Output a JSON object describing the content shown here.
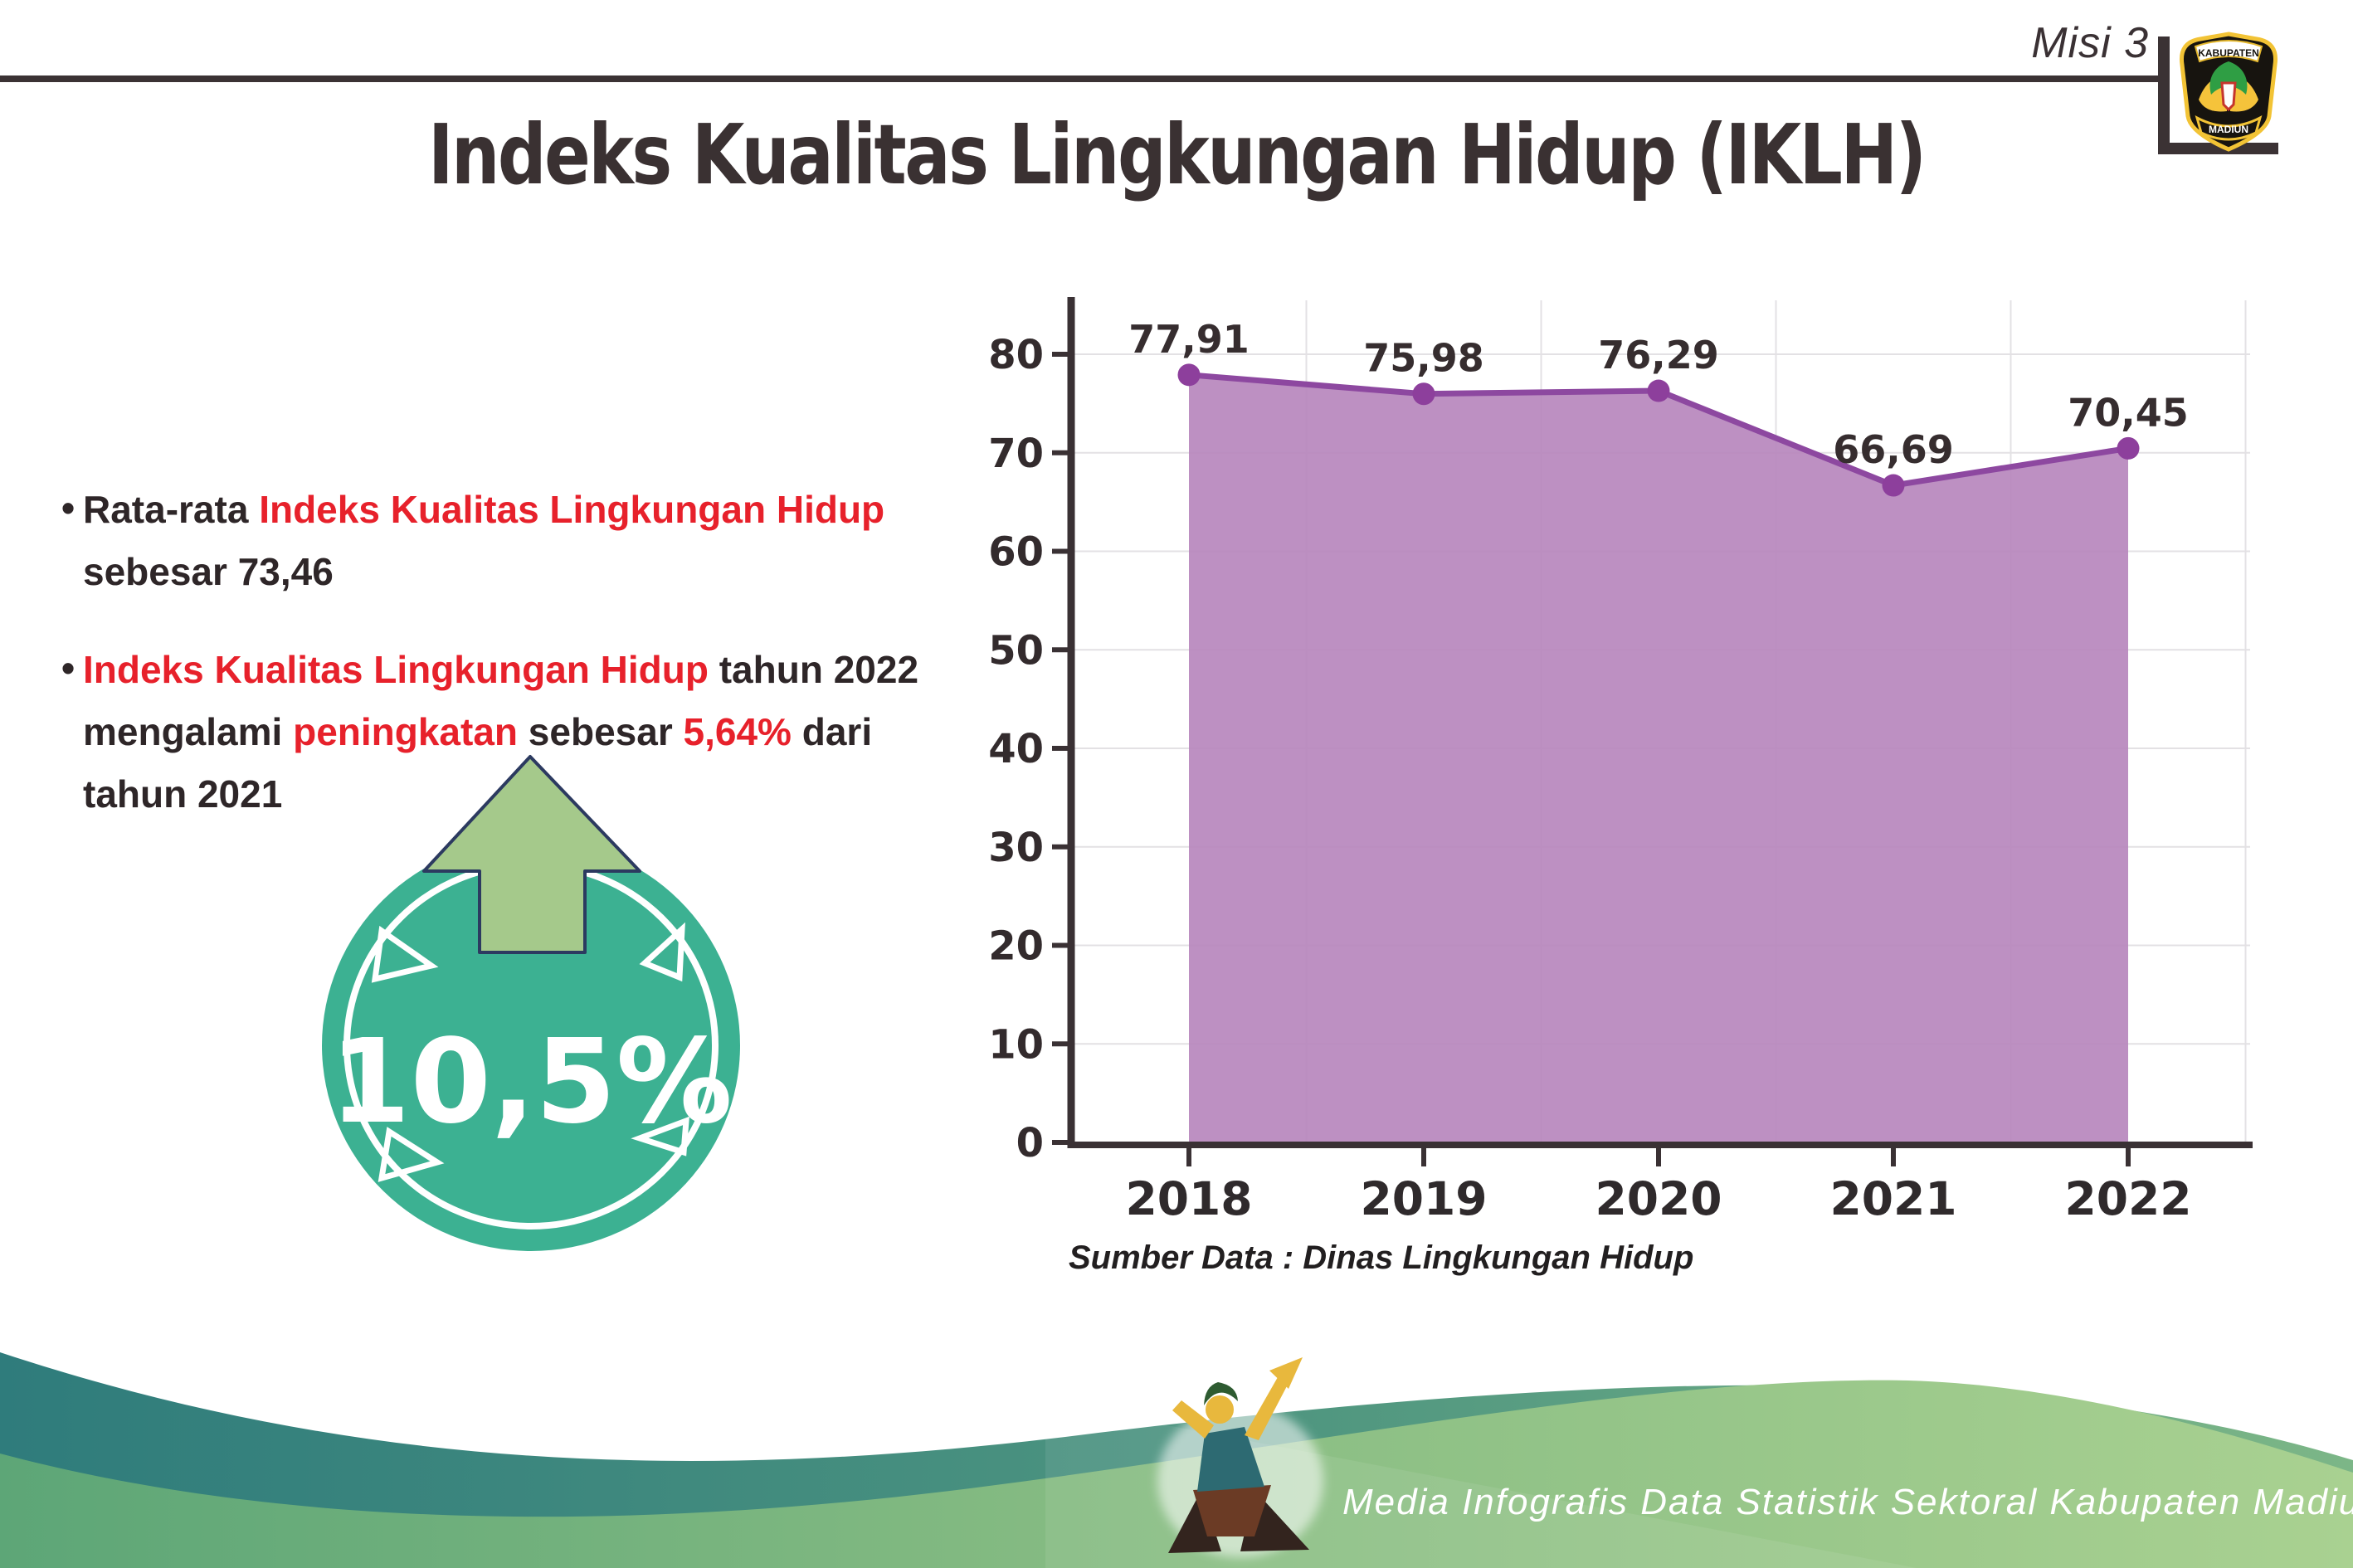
{
  "header": {
    "misi_label": "Misi 3",
    "logo": {
      "top_text": "KABUPATEN",
      "bottom_text": "MADIUN"
    }
  },
  "title": "Indeks Kualitas Lingkungan Hidup (IKLH)",
  "bullets": {
    "b1": {
      "bullet": "•",
      "pre": "Rata-rata ",
      "highlight": "Indeks Kualitas Lingkungan Hidup",
      "line2": "sebesar 73,46"
    },
    "b2": {
      "bullet": "•",
      "hl1": "Indeks Kualitas Lingkungan Hidup",
      "mid1": " tahun 2022",
      "l2a": "mengalami ",
      "hl2": "peningkatan",
      "l2b": " sebesar ",
      "hl3": "5,64%",
      "l2c": " dari",
      "line3": "tahun 2021"
    }
  },
  "badge": {
    "value": "10,5%"
  },
  "chart_data": {
    "type": "area",
    "title": "",
    "categories": [
      "2018",
      "2019",
      "2020",
      "2021",
      "2022"
    ],
    "values": [
      77.91,
      75.98,
      76.29,
      66.69,
      70.45
    ],
    "value_labels": [
      "77,91",
      "75,98",
      "76,29",
      "66,69",
      "70,45"
    ],
    "yticks": [
      0,
      10,
      20,
      30,
      40,
      50,
      60,
      70,
      80
    ],
    "ylim": [
      0,
      85
    ],
    "xlabel": "",
    "ylabel": "",
    "grid": true,
    "legend_position": "none",
    "source_note": "Sumber Data : Dinas Lingkungan Hidup",
    "colors": {
      "fill": "#b787bd",
      "line": "#8d48a0",
      "marker": "#8d3f9c"
    }
  },
  "footer": {
    "text": "Media Infografis Data Statistik Sektoral Kabupaten Madiun |"
  },
  "colors": {
    "accent_red": "#e7212b",
    "badge_teal": "#3cb192",
    "arrow_green": "#a5c98b",
    "dark_line": "#3b3234",
    "footer_teal": "#2f7c7c",
    "footer_green": "#a9d191"
  }
}
